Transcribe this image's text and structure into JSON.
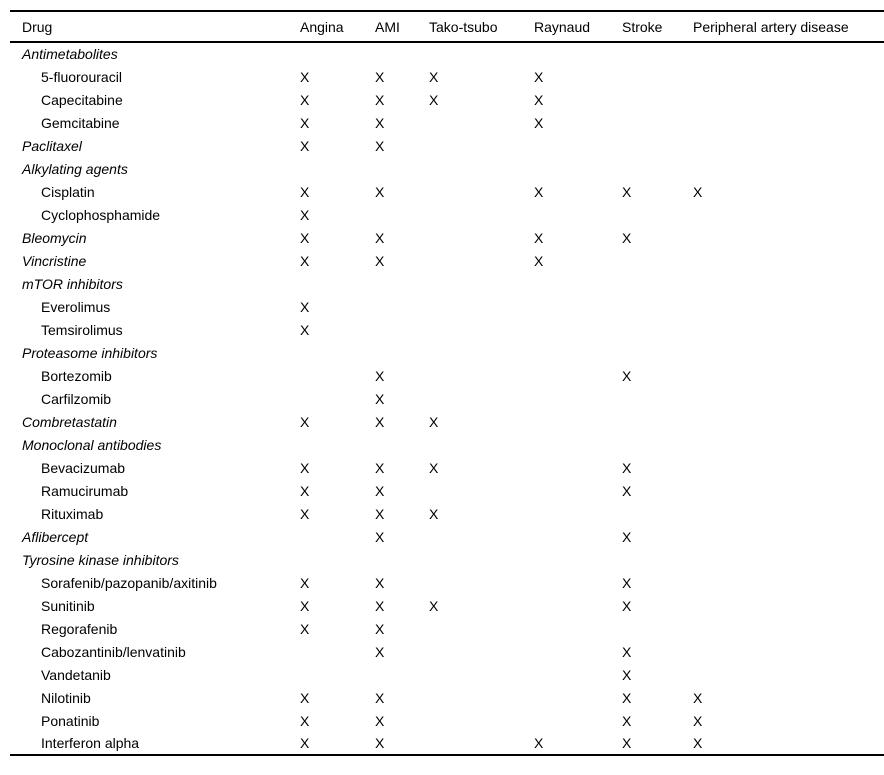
{
  "table": {
    "header": {
      "drug_column": "Drug",
      "condition_columns": [
        "Angina",
        "AMI",
        "Tako-tsubo",
        "Raynaud",
        "Stroke",
        "Peripheral artery disease"
      ]
    },
    "mark_symbol": "X",
    "rows": [
      {
        "label": "Antimetabolites",
        "type": "category",
        "marks": [
          "",
          "",
          "",
          "",
          "",
          ""
        ]
      },
      {
        "label": "5-fluorouracil",
        "type": "drug",
        "marks": [
          "X",
          "X",
          "X",
          "X",
          "",
          ""
        ]
      },
      {
        "label": "Capecitabine",
        "type": "drug",
        "marks": [
          "X",
          "X",
          "X",
          "X",
          "",
          ""
        ]
      },
      {
        "label": "Gemcitabine",
        "type": "drug",
        "marks": [
          "X",
          "X",
          "",
          "X",
          "",
          ""
        ]
      },
      {
        "label": "Paclitaxel",
        "type": "category",
        "marks": [
          "X",
          "X",
          "",
          "",
          "",
          ""
        ]
      },
      {
        "label": "Alkylating agents",
        "type": "category",
        "marks": [
          "",
          "",
          "",
          "",
          "",
          ""
        ]
      },
      {
        "label": "Cisplatin",
        "type": "drug",
        "marks": [
          "X",
          "X",
          "",
          "X",
          "X",
          "X"
        ]
      },
      {
        "label": "Cyclophosphamide",
        "type": "drug",
        "marks": [
          "X",
          "",
          "",
          "",
          "",
          ""
        ]
      },
      {
        "label": "Bleomycin",
        "type": "category",
        "marks": [
          "X",
          "X",
          "",
          "X",
          "X",
          ""
        ]
      },
      {
        "label": "Vincristine",
        "type": "category",
        "marks": [
          "X",
          "X",
          "",
          "X",
          "",
          ""
        ]
      },
      {
        "label": "mTOR inhibitors",
        "type": "category",
        "marks": [
          "",
          "",
          "",
          "",
          "",
          ""
        ]
      },
      {
        "label": "Everolimus",
        "type": "drug",
        "marks": [
          "X",
          "",
          "",
          "",
          "",
          ""
        ]
      },
      {
        "label": "Temsirolimus",
        "type": "drug",
        "marks": [
          "X",
          "",
          "",
          "",
          "",
          ""
        ]
      },
      {
        "label": "Proteasome inhibitors",
        "type": "category",
        "marks": [
          "",
          "",
          "",
          "",
          "",
          ""
        ]
      },
      {
        "label": "Bortezomib",
        "type": "drug",
        "marks": [
          "",
          "X",
          "",
          "",
          "X",
          ""
        ]
      },
      {
        "label": "Carfilzomib",
        "type": "drug",
        "marks": [
          "",
          "X",
          "",
          "",
          "",
          ""
        ]
      },
      {
        "label": "Combretastatin",
        "type": "category",
        "marks": [
          "X",
          "X",
          "X",
          "",
          "",
          ""
        ]
      },
      {
        "label": "Monoclonal antibodies",
        "type": "category",
        "marks": [
          "",
          "",
          "",
          "",
          "",
          ""
        ]
      },
      {
        "label": "Bevacizumab",
        "type": "drug",
        "marks": [
          "X",
          "X",
          "X",
          "",
          "X",
          ""
        ]
      },
      {
        "label": "Ramucirumab",
        "type": "drug",
        "marks": [
          "X",
          "X",
          "",
          "",
          "X",
          ""
        ]
      },
      {
        "label": "Rituximab",
        "type": "drug",
        "marks": [
          "X",
          "X",
          "X",
          "",
          "",
          ""
        ]
      },
      {
        "label": "Aflibercept",
        "type": "category",
        "marks": [
          "",
          "X",
          "",
          "",
          "X",
          ""
        ]
      },
      {
        "label": "Tyrosine kinase inhibitors",
        "type": "category",
        "marks": [
          "",
          "",
          "",
          "",
          "",
          ""
        ]
      },
      {
        "label": "Sorafenib/pazopanib/axitinib",
        "type": "drug",
        "marks": [
          "X",
          "X",
          "",
          "",
          "X",
          ""
        ]
      },
      {
        "label": "Sunitinib",
        "type": "drug",
        "marks": [
          "X",
          "X",
          "X",
          "",
          "X",
          ""
        ]
      },
      {
        "label": "Regorafenib",
        "type": "drug",
        "marks": [
          "X",
          "X",
          "",
          "",
          "",
          ""
        ]
      },
      {
        "label": "Cabozantinib/lenvatinib",
        "type": "drug",
        "marks": [
          "",
          "X",
          "",
          "",
          "X",
          ""
        ]
      },
      {
        "label": "Vandetanib",
        "type": "drug",
        "marks": [
          "",
          "",
          "",
          "",
          "X",
          ""
        ]
      },
      {
        "label": "Nilotinib",
        "type": "drug",
        "marks": [
          "X",
          "X",
          "",
          "",
          "X",
          "X"
        ]
      },
      {
        "label": "Ponatinib",
        "type": "drug",
        "marks": [
          "X",
          "X",
          "",
          "",
          "X",
          "X"
        ]
      },
      {
        "label": "Interferon alpha",
        "type": "drug",
        "marks": [
          "X",
          "X",
          "",
          "X",
          "X",
          "X"
        ]
      }
    ]
  }
}
